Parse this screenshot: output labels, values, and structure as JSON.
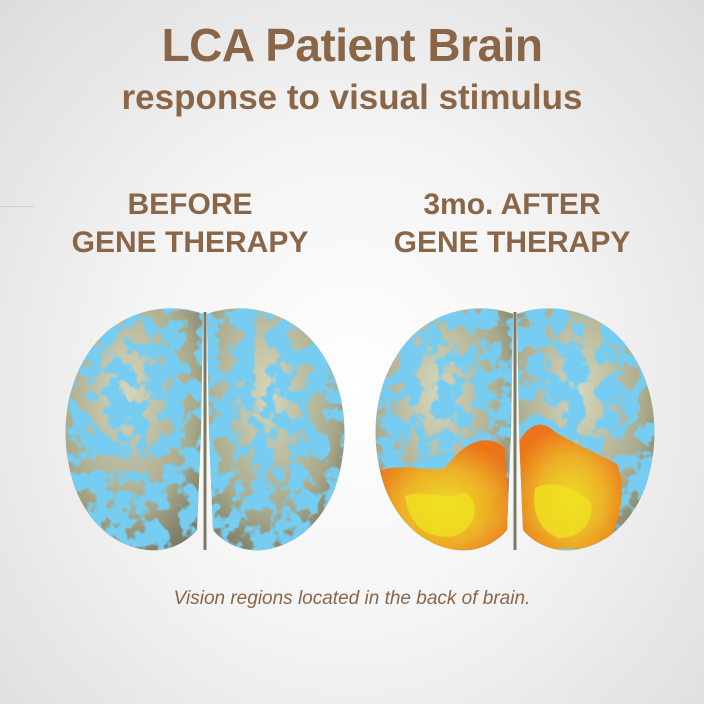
{
  "title": "LCA Patient Brain",
  "subtitle": "response to visual stimulus",
  "panels": [
    {
      "heading_line1": "BEFORE",
      "heading_line2": "GENE THERAPY",
      "activation": false
    },
    {
      "heading_line1": "3mo. AFTER",
      "heading_line2": "GENE THERAPY",
      "activation": true
    }
  ],
  "caption": "Vision regions located in the back of brain.",
  "colors": {
    "text": "#8a6648",
    "cortex_surface": "#b8b89a",
    "cortex_sulci": "#2f9be0",
    "activation_high": "#f0e020",
    "activation_low": "#f07010"
  }
}
